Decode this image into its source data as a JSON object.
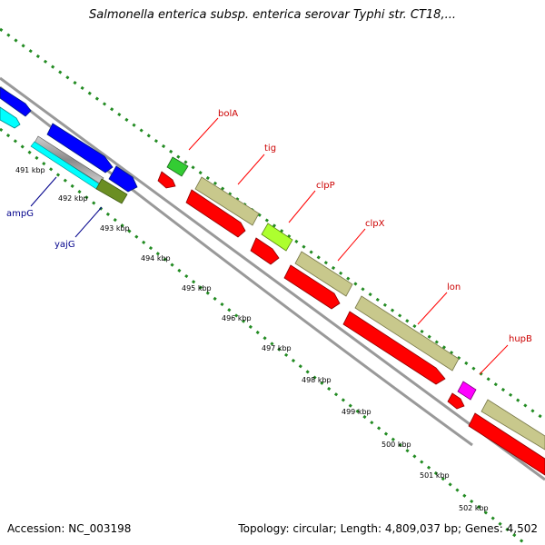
{
  "title": "Salmonella enterica subsp. enterica serovar Typhi str. CT18,...",
  "footer": {
    "accession": "Accession: NC_003198",
    "summary": "Topology: circular; Length: 4,809,037 bp; Genes: 4,502"
  },
  "scale_labels": [
    "491 kbp",
    "492 kbp",
    "493 kbp",
    "494 kbp",
    "495 kbp",
    "496 kbp",
    "497 kbp",
    "498 kbp",
    "499 kbp",
    "500 kbp",
    "501 kbp",
    "502 kbp"
  ],
  "gene_labels": {
    "forward": [
      "bolA",
      "tig",
      "clpP",
      "clpX",
      "lon",
      "hupB"
    ],
    "reverse": [
      "ampG",
      "yajG"
    ]
  },
  "colors": {
    "backbone": "#999999",
    "tick": "#228b22",
    "cds": "#ff0000",
    "gene": "#c8c88c",
    "blue_feature": "#0000ff",
    "cyan_feature": "#00ffff",
    "green_feature": "#33cc33",
    "olive_feature": "#6b8e23",
    "lime_feature": "#adff2f",
    "magenta_feature": "#ff00ff",
    "forward_label": "#cc0000",
    "reverse_label": "#00008b"
  }
}
